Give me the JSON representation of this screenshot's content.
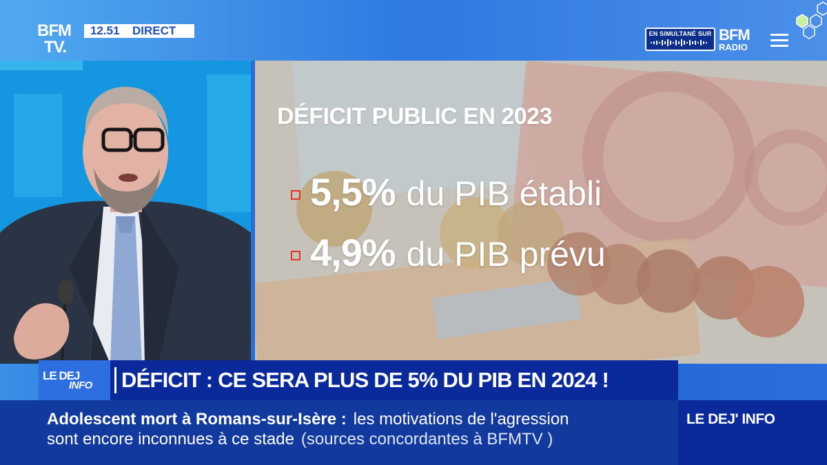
{
  "header": {
    "logo_line1": "BFM",
    "logo_line2": "TV.",
    "time": "12.51",
    "live_label": "DIRECT",
    "simulcast_label": "EN SIMULTANÉ SUR",
    "radio_logo_line1": "BFM",
    "radio_logo_line2": "RADIO"
  },
  "graphic": {
    "title": "DÉFICIT PUBLIC EN 2023",
    "stats": [
      {
        "value": "5,5%",
        "description": "du PIB établi"
      },
      {
        "value": "4,9%",
        "description": "du PIB prévu"
      }
    ],
    "bullet_color": "#e2342b"
  },
  "headline": {
    "show_logo_line1": "LE DEJ",
    "show_logo_line2": "INFO",
    "text": "DÉFICIT : CE SERA PLUS DE 5% DU PIB EN 2024 !"
  },
  "ticker": {
    "headline_bold": "Adolescent mort à Romans-sur-Isère  :",
    "headline_rest": "les motivations de l'agression",
    "line2": "sont encore inconnues à ce stade",
    "source": "(sources concordantes à BFMTV )"
  },
  "program_tag": "LE DEJ' INFO",
  "colors": {
    "brand_blue": "#0a2a9c",
    "accent_blue": "#2d6fe0",
    "alert_red": "#e2342b"
  }
}
